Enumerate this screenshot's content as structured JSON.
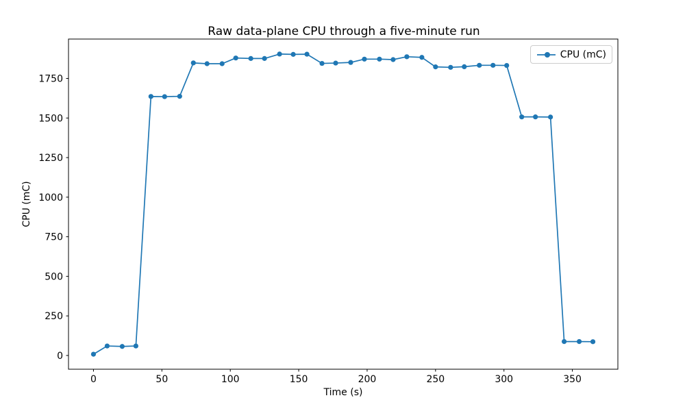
{
  "figure": {
    "background": "#ffffff",
    "text_color": "#000000",
    "spine_color": "#000000",
    "legend_border_color": "#cccccc"
  },
  "chart_data": {
    "type": "line",
    "title": "Raw data-plane CPU through a five-minute run",
    "xlabel": "Time (s)",
    "ylabel": "CPU (mC)",
    "legend": {
      "entries": [
        "CPU (mC)"
      ],
      "position": "upper right"
    },
    "line_color": "#1f77b4",
    "marker": "o",
    "grid": false,
    "xticks": [
      0,
      50,
      100,
      150,
      200,
      250,
      300,
      350
    ],
    "yticks": [
      0,
      250,
      500,
      750,
      1000,
      1250,
      1500,
      1750
    ],
    "xlim": [
      -18.25,
      383.25
    ],
    "ylim": [
      -86.8,
      1998.8
    ],
    "series": [
      {
        "name": "CPU (mC)",
        "x": [
          0,
          10,
          21,
          31,
          42,
          52,
          63,
          73,
          83,
          94,
          104,
          115,
          125,
          136,
          146,
          156,
          167,
          177,
          188,
          198,
          209,
          219,
          229,
          240,
          250,
          261,
          271,
          282,
          292,
          302,
          313,
          323,
          334,
          344,
          355,
          365
        ],
        "y": [
          8,
          60,
          57,
          60,
          1636,
          1635,
          1637,
          1848,
          1843,
          1843,
          1879,
          1876,
          1876,
          1904,
          1902,
          1903,
          1845,
          1847,
          1851,
          1872,
          1872,
          1869,
          1887,
          1883,
          1823,
          1820,
          1824,
          1833,
          1833,
          1832,
          1507,
          1507,
          1506,
          88,
          88,
          87
        ]
      }
    ]
  }
}
